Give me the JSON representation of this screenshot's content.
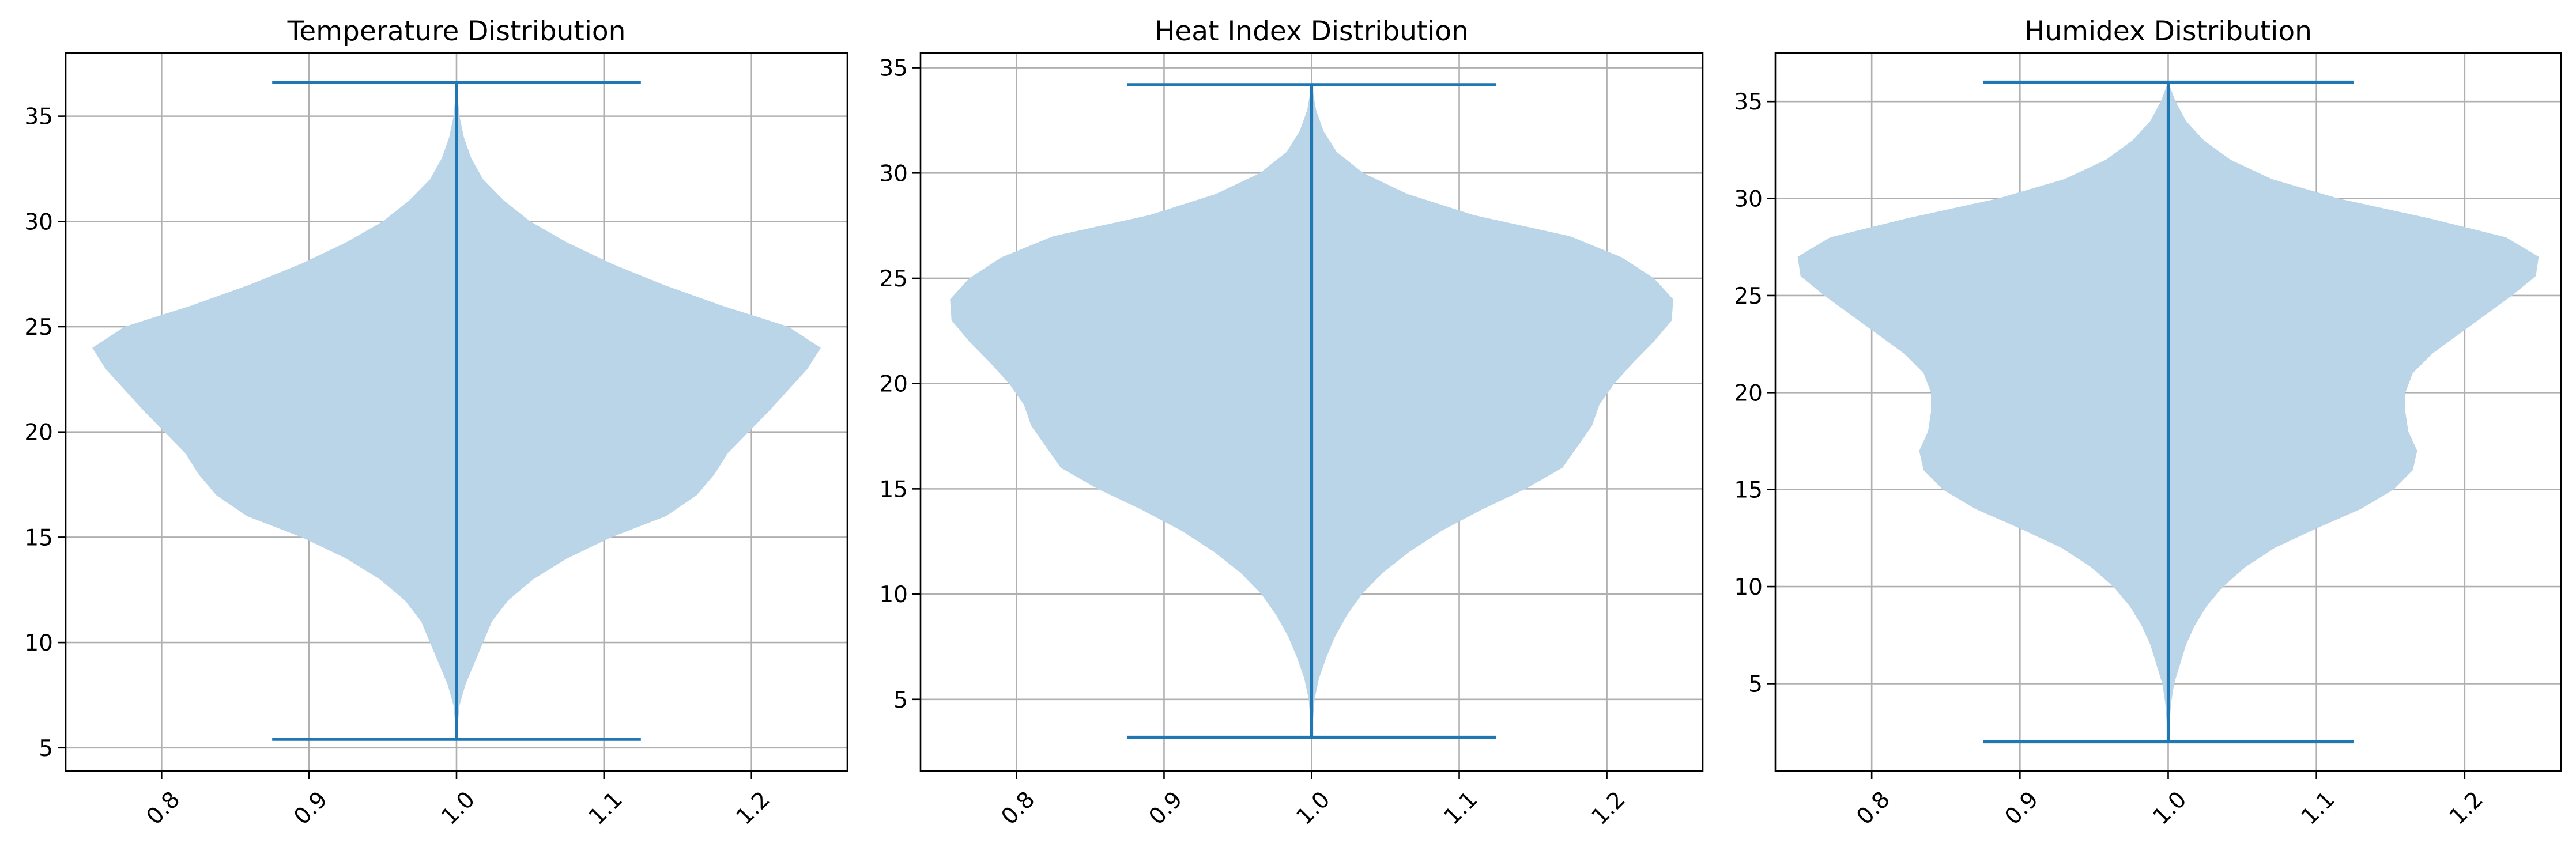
{
  "chart_data": [
    {
      "type": "violin",
      "title": "Temperature Distribution",
      "xlabel": "",
      "ylabel": "",
      "xlim": [
        0.735,
        1.265
      ],
      "ylim": [
        3.9,
        38.0
      ],
      "xticks": [
        "0.8",
        "0.9",
        "1.0",
        "1.1",
        "1.2"
      ],
      "yticks": [
        "5",
        "10",
        "15",
        "20",
        "25",
        "30",
        "35"
      ],
      "grid": true,
      "position": 1.0,
      "min": 5.4,
      "max": 36.6,
      "body_color": "#bad4e8",
      "line_color": "#1f77b4",
      "density_halfwidth": [
        [
          5.4,
          0.0
        ],
        [
          7,
          0.002
        ],
        [
          8,
          0.006
        ],
        [
          9,
          0.012
        ],
        [
          10,
          0.018
        ],
        [
          11,
          0.024
        ],
        [
          12,
          0.035
        ],
        [
          13,
          0.052
        ],
        [
          14,
          0.075
        ],
        [
          15,
          0.105
        ],
        [
          16,
          0.142
        ],
        [
          17,
          0.163
        ],
        [
          18,
          0.175
        ],
        [
          19,
          0.184
        ],
        [
          20,
          0.198
        ],
        [
          21,
          0.212
        ],
        [
          22,
          0.225
        ],
        [
          23,
          0.238
        ],
        [
          24,
          0.247
        ],
        [
          25,
          0.225
        ],
        [
          26,
          0.18
        ],
        [
          27,
          0.14
        ],
        [
          28,
          0.105
        ],
        [
          29,
          0.075
        ],
        [
          30,
          0.05
        ],
        [
          31,
          0.032
        ],
        [
          32,
          0.018
        ],
        [
          33,
          0.01
        ],
        [
          34,
          0.005
        ],
        [
          35,
          0.002
        ],
        [
          36.6,
          0.0
        ]
      ]
    },
    {
      "type": "violin",
      "title": "Heat Index Distribution",
      "xlabel": "",
      "ylabel": "",
      "xlim": [
        0.735,
        1.265
      ],
      "ylim": [
        1.6,
        35.7
      ],
      "xticks": [
        "0.8",
        "0.9",
        "1.0",
        "1.1",
        "1.2"
      ],
      "yticks": [
        "5",
        "10",
        "15",
        "20",
        "25",
        "30",
        "35"
      ],
      "grid": true,
      "position": 1.0,
      "min": 3.2,
      "max": 34.2,
      "body_color": "#bad4e8",
      "line_color": "#1f77b4",
      "density_halfwidth": [
        [
          3.2,
          0.0
        ],
        [
          5,
          0.002
        ],
        [
          6,
          0.005
        ],
        [
          7,
          0.01
        ],
        [
          8,
          0.016
        ],
        [
          9,
          0.024
        ],
        [
          10,
          0.034
        ],
        [
          11,
          0.048
        ],
        [
          12,
          0.066
        ],
        [
          13,
          0.088
        ],
        [
          14,
          0.115
        ],
        [
          15,
          0.145
        ],
        [
          16,
          0.17
        ],
        [
          17,
          0.18
        ],
        [
          18,
          0.19
        ],
        [
          19,
          0.195
        ],
        [
          20,
          0.205
        ],
        [
          21,
          0.218
        ],
        [
          22,
          0.232
        ],
        [
          23,
          0.244
        ],
        [
          24,
          0.245
        ],
        [
          25,
          0.232
        ],
        [
          26,
          0.21
        ],
        [
          27,
          0.175
        ],
        [
          28,
          0.11
        ],
        [
          29,
          0.065
        ],
        [
          30,
          0.035
        ],
        [
          31,
          0.017
        ],
        [
          32,
          0.008
        ],
        [
          33,
          0.003
        ],
        [
          34.2,
          0.0
        ]
      ]
    },
    {
      "type": "violin",
      "title": "Humidex Distribution",
      "xlabel": "",
      "ylabel": "",
      "xlim": [
        0.735,
        1.265
      ],
      "ylim": [
        0.5,
        37.5
      ],
      "xticks": [
        "0.8",
        "0.9",
        "1.0",
        "1.1",
        "1.2"
      ],
      "yticks": [
        "5",
        "10",
        "15",
        "20",
        "25",
        "30",
        "35"
      ],
      "grid": true,
      "position": 1.0,
      "min": 2.0,
      "max": 36.0,
      "body_color": "#bad4e8",
      "line_color": "#1f77b4",
      "density_halfwidth": [
        [
          2.0,
          0.0
        ],
        [
          4,
          0.002
        ],
        [
          5,
          0.004
        ],
        [
          6,
          0.008
        ],
        [
          7,
          0.012
        ],
        [
          8,
          0.018
        ],
        [
          9,
          0.026
        ],
        [
          10,
          0.037
        ],
        [
          11,
          0.052
        ],
        [
          12,
          0.072
        ],
        [
          13,
          0.1
        ],
        [
          14,
          0.13
        ],
        [
          15,
          0.152
        ],
        [
          16,
          0.165
        ],
        [
          17,
          0.168
        ],
        [
          18,
          0.162
        ],
        [
          19,
          0.16
        ],
        [
          20,
          0.16
        ],
        [
          21,
          0.165
        ],
        [
          22,
          0.178
        ],
        [
          23,
          0.196
        ],
        [
          24,
          0.214
        ],
        [
          25,
          0.232
        ],
        [
          26,
          0.248
        ],
        [
          27,
          0.25
        ],
        [
          28,
          0.228
        ],
        [
          29,
          0.175
        ],
        [
          30,
          0.115
        ],
        [
          31,
          0.07
        ],
        [
          32,
          0.042
        ],
        [
          33,
          0.024
        ],
        [
          34,
          0.012
        ],
        [
          35,
          0.005
        ],
        [
          36,
          0.0
        ]
      ]
    }
  ]
}
